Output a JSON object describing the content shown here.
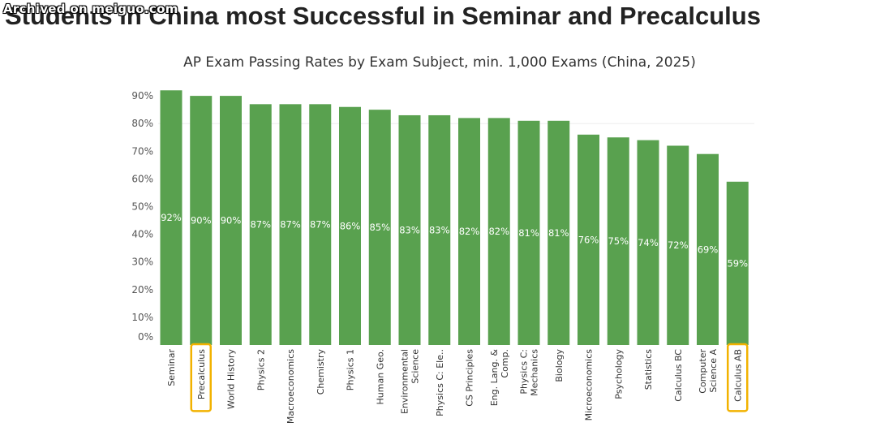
{
  "watermark": "Archived on meiguo.com",
  "headline": "Students in China most Successful in Seminar and Precalculus",
  "colors": {
    "bar": "#59a14f",
    "highlight": "#f2b200",
    "grid": "#eeeeee"
  },
  "chart_data": {
    "type": "bar",
    "title": "AP Exam Passing Rates by Exam Subject, min. 1,000 Exams (China, 2025)",
    "xlabel": "",
    "ylabel": "",
    "ylim": [
      0,
      90
    ],
    "yticks": [
      "0%",
      "10%",
      "20%",
      "30%",
      "40%",
      "50%",
      "60%",
      "70%",
      "80%",
      "90%"
    ],
    "gridlines": [
      80
    ],
    "categories": [
      [
        "Seminar"
      ],
      [
        "Precalculus"
      ],
      [
        "World History"
      ],
      [
        "Physics 2"
      ],
      [
        "Macroeconomics"
      ],
      [
        "Chemistry"
      ],
      [
        "Physics 1"
      ],
      [
        "Human Geo."
      ],
      [
        "Environmental",
        "Science"
      ],
      [
        "Physics C: Ele.."
      ],
      [
        "CS Principles"
      ],
      [
        "Eng. Lang. &",
        "Comp."
      ],
      [
        "Physics C:",
        "Mechanics"
      ],
      [
        "Biology"
      ],
      [
        "Microeconomics"
      ],
      [
        "Psychology"
      ],
      [
        "Statistics"
      ],
      [
        "Calculus BC"
      ],
      [
        "Computer",
        "Science A"
      ],
      [
        "Calculus AB"
      ]
    ],
    "values": [
      92,
      90,
      90,
      87,
      87,
      87,
      86,
      85,
      83,
      83,
      82,
      82,
      81,
      81,
      76,
      75,
      74,
      72,
      69,
      59
    ],
    "labels": [
      "92%",
      "90%",
      "90%",
      "87%",
      "87%",
      "87%",
      "86%",
      "85%",
      "83%",
      "83%",
      "82%",
      "82%",
      "81%",
      "81%",
      "76%",
      "75%",
      "74%",
      "72%",
      "69%",
      "59%"
    ],
    "highlighted": [
      "Precalculus",
      "Calculus AB"
    ]
  }
}
